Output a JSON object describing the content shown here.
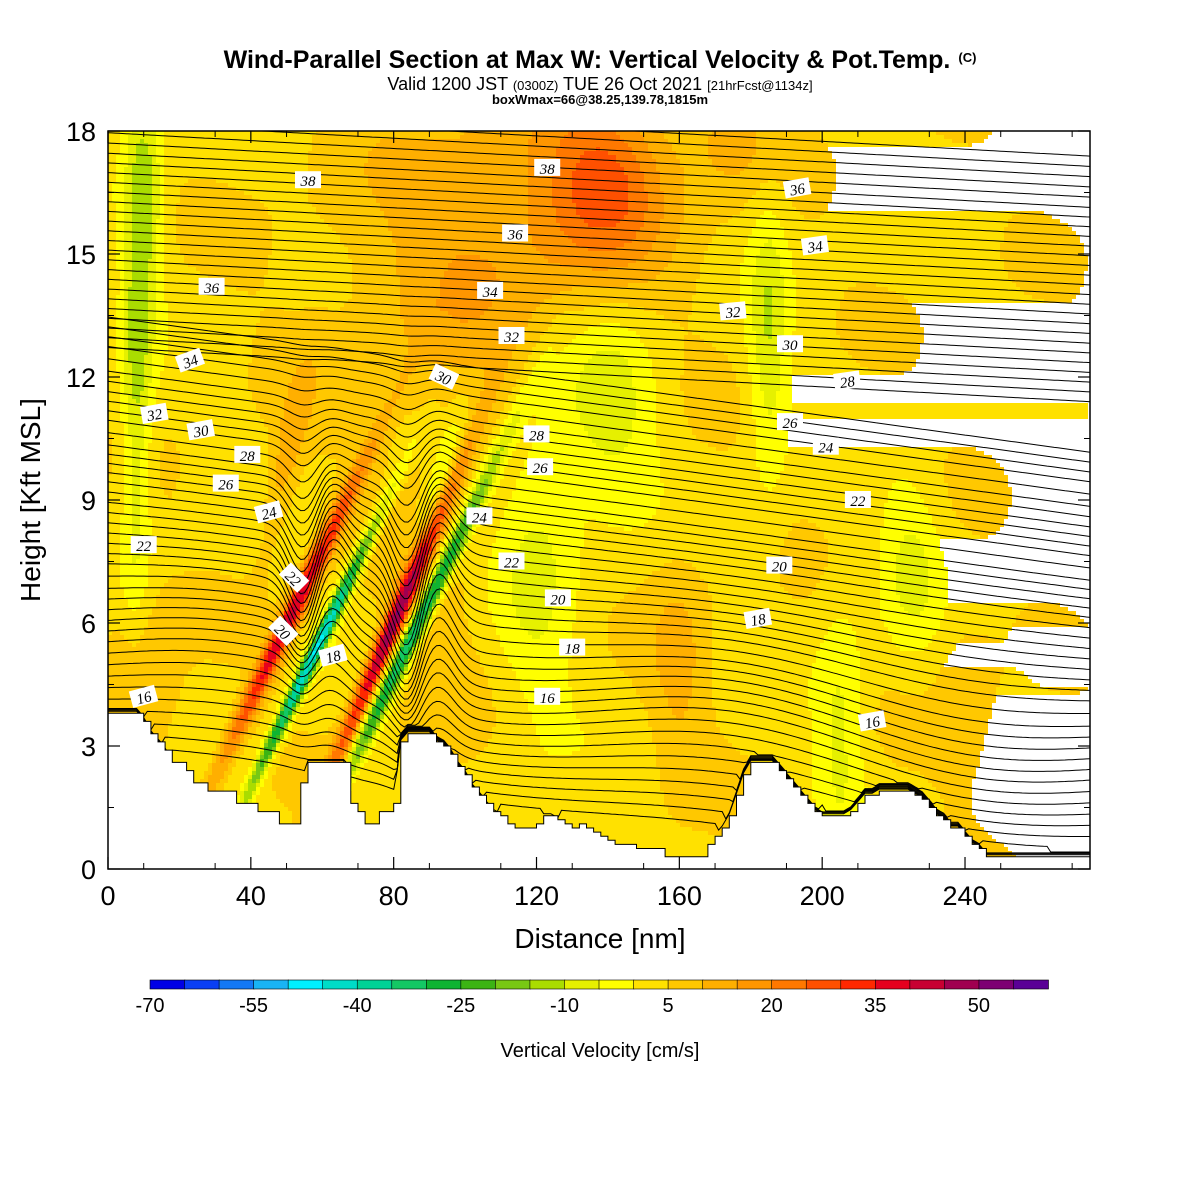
{
  "chart_data": {
    "type": "heatmap",
    "title": "Wind-Parallel Section at Max W: Vertical Velocity & Pot.Temp.",
    "title_mark": "(C)",
    "subtitle_parts": [
      "Valid 1200 JST ",
      "(0300Z)",
      " TUE 26 Oct 2021 ",
      "[21hrFcst@1134z]"
    ],
    "subtitle2": "boxWmax=66@38.25,139.78,1815m",
    "xlabel": "Distance [nm]",
    "ylabel": "Height [Kft MSL]",
    "xlim": [
      0,
      275
    ],
    "ylim": [
      0,
      18
    ],
    "x_ticks": [
      "0",
      "40",
      "80",
      "120",
      "160",
      "200",
      "240"
    ],
    "x_tick_values": [
      0,
      40,
      80,
      120,
      160,
      200,
      240
    ],
    "y_ticks": [
      "0",
      "3",
      "6",
      "9",
      "12",
      "15",
      "18"
    ],
    "y_tick_values": [
      0,
      3,
      6,
      9,
      12,
      15,
      18
    ],
    "colorbar": {
      "label": "Vertical Velocity [cm/s]",
      "tick_labels": [
        "-70",
        "-55",
        "-40",
        "-25",
        "-10",
        "5",
        "20",
        "35",
        "50"
      ],
      "tick_bins": [
        0,
        3,
        6,
        9,
        12,
        15,
        18,
        21,
        24
      ],
      "colors": [
        "#0000e6",
        "#0a3ff5",
        "#1478f5",
        "#19b4f5",
        "#00f0ff",
        "#00dcc8",
        "#00d296",
        "#14c864",
        "#0fb432",
        "#3cb414",
        "#78c814",
        "#aadc00",
        "#e6f000",
        "#ffff00",
        "#ffe100",
        "#ffc800",
        "#ffaf00",
        "#ff9600",
        "#ff7800",
        "#ff5000",
        "#ff2800",
        "#e6001e",
        "#c80032",
        "#a00050",
        "#7d0073",
        "#5a0096"
      ]
    },
    "terrain_profile": [
      [
        0,
        3.8
      ],
      [
        8,
        3.8
      ],
      [
        10,
        3.6
      ],
      [
        12,
        3.3
      ],
      [
        14,
        3.1
      ],
      [
        16,
        2.9
      ],
      [
        18,
        2.6
      ],
      [
        20,
        2.6
      ],
      [
        22,
        2.4
      ],
      [
        24,
        2.1
      ],
      [
        26,
        2.1
      ],
      [
        28,
        1.9
      ],
      [
        30,
        1.9
      ],
      [
        32,
        1.9
      ],
      [
        34,
        1.9
      ],
      [
        36,
        1.6
      ],
      [
        38,
        1.6
      ],
      [
        40,
        1.6
      ],
      [
        42,
        1.4
      ],
      [
        44,
        1.4
      ],
      [
        46,
        1.4
      ],
      [
        48,
        1.1
      ],
      [
        50,
        1.1
      ],
      [
        52,
        1.1
      ],
      [
        54,
        2.1
      ],
      [
        56,
        2.6
      ],
      [
        58,
        2.6
      ],
      [
        60,
        2.6
      ],
      [
        62,
        2.6
      ],
      [
        64,
        2.6
      ],
      [
        66,
        2.6
      ],
      [
        68,
        1.6
      ],
      [
        70,
        1.4
      ],
      [
        72,
        1.1
      ],
      [
        74,
        1.1
      ],
      [
        76,
        1.4
      ],
      [
        78,
        1.4
      ],
      [
        80,
        1.6
      ],
      [
        82,
        3.1
      ],
      [
        84,
        3.3
      ],
      [
        86,
        3.3
      ],
      [
        88,
        3.3
      ],
      [
        90,
        3.3
      ],
      [
        92,
        3.1
      ],
      [
        94,
        3.0
      ],
      [
        96,
        2.8
      ],
      [
        98,
        2.5
      ],
      [
        100,
        2.3
      ],
      [
        102,
        2.0
      ],
      [
        104,
        1.8
      ],
      [
        106,
        1.6
      ],
      [
        108,
        1.4
      ],
      [
        110,
        1.3
      ],
      [
        112,
        1.1
      ],
      [
        114,
        1.0
      ],
      [
        116,
        1.0
      ],
      [
        118,
        1.0
      ],
      [
        120,
        1.1
      ],
      [
        122,
        1.3
      ],
      [
        124,
        1.3
      ],
      [
        126,
        1.2
      ],
      [
        128,
        1.1
      ],
      [
        130,
        1.0
      ],
      [
        132,
        1.1
      ],
      [
        134,
        1.0
      ],
      [
        136,
        0.9
      ],
      [
        138,
        0.8
      ],
      [
        140,
        0.7
      ],
      [
        142,
        0.6
      ],
      [
        144,
        0.6
      ],
      [
        146,
        0.6
      ],
      [
        148,
        0.5
      ],
      [
        150,
        0.5
      ],
      [
        152,
        0.5
      ],
      [
        154,
        0.5
      ],
      [
        156,
        0.3
      ],
      [
        158,
        0.3
      ],
      [
        160,
        0.3
      ],
      [
        162,
        0.3
      ],
      [
        164,
        0.3
      ],
      [
        166,
        0.3
      ],
      [
        168,
        0.6
      ],
      [
        170,
        0.8
      ],
      [
        172,
        1.0
      ],
      [
        174,
        1.3
      ],
      [
        176,
        1.8
      ],
      [
        178,
        2.3
      ],
      [
        180,
        2.6
      ],
      [
        182,
        2.6
      ],
      [
        184,
        2.6
      ],
      [
        186,
        2.6
      ],
      [
        188,
        2.4
      ],
      [
        190,
        2.2
      ],
      [
        192,
        2.0
      ],
      [
        194,
        1.8
      ],
      [
        196,
        1.6
      ],
      [
        198,
        1.4
      ],
      [
        200,
        1.3
      ],
      [
        202,
        1.3
      ],
      [
        204,
        1.3
      ],
      [
        206,
        1.3
      ],
      [
        208,
        1.4
      ],
      [
        210,
        1.6
      ],
      [
        212,
        1.8
      ],
      [
        214,
        1.8
      ],
      [
        216,
        1.9
      ],
      [
        218,
        1.9
      ],
      [
        220,
        1.9
      ],
      [
        222,
        1.9
      ],
      [
        224,
        1.9
      ],
      [
        226,
        1.8
      ],
      [
        228,
        1.7
      ],
      [
        230,
        1.5
      ],
      [
        232,
        1.3
      ],
      [
        234,
        1.2
      ],
      [
        236,
        1.0
      ],
      [
        238,
        1.0
      ],
      [
        240,
        0.8
      ],
      [
        242,
        0.6
      ],
      [
        244,
        0.5
      ],
      [
        246,
        0.3
      ],
      [
        248,
        0.3
      ],
      [
        250,
        0.3
      ],
      [
        252,
        0.3
      ],
      [
        254,
        0.3
      ],
      [
        256,
        0.3
      ],
      [
        258,
        0.3
      ],
      [
        260,
        0.3
      ],
      [
        262,
        0.3
      ],
      [
        264,
        0.3
      ],
      [
        266,
        0.3
      ],
      [
        268,
        0.3
      ],
      [
        270,
        0.3
      ],
      [
        275,
        0.3
      ]
    ],
    "w_features": [
      {
        "x": 52,
        "y": 6.3,
        "sx": 2.2,
        "sy": 2.6,
        "tilt": 0.9,
        "amp": 7.5
      },
      {
        "x": 58,
        "y": 5.3,
        "sx": 1.6,
        "sy": 2.4,
        "tilt": 0.9,
        "amp": -9.5
      },
      {
        "x": 81,
        "y": 6.2,
        "sx": 2.1,
        "sy": 2.6,
        "tilt": 0.8,
        "amp": 9.0
      },
      {
        "x": 87,
        "y": 6.0,
        "sx": 2.0,
        "sy": 2.9,
        "tilt": 0.9,
        "amp": -8.0
      },
      {
        "x": 92,
        "y": 9.0,
        "sx": 3.0,
        "sy": 1.5,
        "tilt": 0.5,
        "amp": -2.5
      },
      {
        "x": 50,
        "y": 10.0,
        "sx": 3.0,
        "sy": 1.5,
        "tilt": 0.4,
        "amp": 2.0
      },
      {
        "x": 90,
        "y": 6.0,
        "sx": 8.0,
        "sy": 3.0,
        "tilt": 0.0,
        "amp": 1.0
      },
      {
        "x": 140,
        "y": 16.8,
        "sx": 12.0,
        "sy": 1.5,
        "tilt": 0.0,
        "amp": 3.5
      },
      {
        "x": 120,
        "y": 16.0,
        "sx": 25.0,
        "sy": 2.5,
        "tilt": 0.0,
        "amp": 1.5
      },
      {
        "x": 100,
        "y": 14.5,
        "sx": 30.0,
        "sy": 3.0,
        "tilt": 0.0,
        "amp": 1.2
      },
      {
        "x": 8,
        "y": 13.0,
        "sx": 3.0,
        "sy": 5.0,
        "tilt": 0.0,
        "amp": -3.0
      },
      {
        "x": 12,
        "y": 16.5,
        "sx": 3.0,
        "sy": 2.0,
        "tilt": 0.0,
        "amp": -2.0
      },
      {
        "x": 140,
        "y": 11.5,
        "sx": 10.0,
        "sy": 2.0,
        "tilt": 0.0,
        "amp": -2.5
      },
      {
        "x": 120,
        "y": 8.0,
        "sx": 8.0,
        "sy": 3.5,
        "tilt": 0.0,
        "amp": -1.8
      },
      {
        "x": 185,
        "y": 13.0,
        "sx": 4.0,
        "sy": 2.5,
        "tilt": 0.0,
        "amp": -2.5
      },
      {
        "x": 205,
        "y": 3.5,
        "sx": 5.0,
        "sy": 2.0,
        "tilt": 0.0,
        "amp": -2.0
      },
      {
        "x": 225,
        "y": 7.5,
        "sx": 6.0,
        "sy": 1.5,
        "tilt": 0.0,
        "amp": -1.8
      },
      {
        "x": 160,
        "y": 5.0,
        "sx": 6.0,
        "sy": 2.0,
        "tilt": 0.0,
        "amp": 1.5
      },
      {
        "x": 10,
        "y": 4.5,
        "sx": 7.0,
        "sy": 1.5,
        "tilt": 0.0,
        "amp": 1.8
      },
      {
        "x": 240,
        "y": 4.0,
        "sx": 6.0,
        "sy": 1.5,
        "tilt": 0.0,
        "amp": 1.2
      },
      {
        "x": 175,
        "y": 17.8,
        "sx": 10.0,
        "sy": 1.0,
        "tilt": 0.0,
        "amp": 1.5
      }
    ],
    "theta_contours": [
      {
        "level": 16,
        "ref_y": 3.9,
        "ref_x": 0
      },
      {
        "level": 18,
        "ref_y": 5.2,
        "ref_x": 60
      },
      {
        "level": 20,
        "ref_y": 5.8,
        "ref_x": 49
      },
      {
        "level": 22,
        "ref_y": 7.8,
        "ref_x": 10
      },
      {
        "level": 24,
        "ref_y": 8.7,
        "ref_x": 45
      },
      {
        "level": 26,
        "ref_y": 9.3,
        "ref_x": 33
      },
      {
        "level": 28,
        "ref_y": 10.0,
        "ref_x": 39
      },
      {
        "level": 30,
        "ref_y": 10.5,
        "ref_x": 26
      },
      {
        "level": 32,
        "ref_y": 11.1,
        "ref_x": 13
      },
      {
        "level": 34,
        "ref_y": 12.3,
        "ref_x": 23
      },
      {
        "level": 36,
        "ref_y": 14.2,
        "ref_x": 30
      },
      {
        "level": 38,
        "ref_y": 16.8,
        "ref_x": 56
      }
    ],
    "contour_spacing_kft": 0.245,
    "contour_labels": [
      {
        "text": "38",
        "x": 56,
        "y": 16.8,
        "rot": 0
      },
      {
        "text": "38",
        "x": 123,
        "y": 17.1,
        "rot": 0
      },
      {
        "text": "36",
        "x": 193,
        "y": 16.6,
        "rot": -10
      },
      {
        "text": "36",
        "x": 114,
        "y": 15.5,
        "rot": 0
      },
      {
        "text": "34",
        "x": 198,
        "y": 15.2,
        "rot": -8
      },
      {
        "text": "36",
        "x": 29,
        "y": 14.2,
        "rot": 0
      },
      {
        "text": "34",
        "x": 107,
        "y": 14.1,
        "rot": 0
      },
      {
        "text": "32",
        "x": 175,
        "y": 13.6,
        "rot": -5
      },
      {
        "text": "32",
        "x": 113,
        "y": 13.0,
        "rot": 0
      },
      {
        "text": "30",
        "x": 191,
        "y": 12.8,
        "rot": 0
      },
      {
        "text": "34",
        "x": 23,
        "y": 12.4,
        "rot": -20
      },
      {
        "text": "30",
        "x": 94,
        "y": 12.0,
        "rot": 25
      },
      {
        "text": "28",
        "x": 207,
        "y": 11.9,
        "rot": -8
      },
      {
        "text": "32",
        "x": 13,
        "y": 11.1,
        "rot": -10
      },
      {
        "text": "26",
        "x": 191,
        "y": 10.9,
        "rot": 0
      },
      {
        "text": "30",
        "x": 26,
        "y": 10.7,
        "rot": -10
      },
      {
        "text": "28",
        "x": 120,
        "y": 10.6,
        "rot": 0
      },
      {
        "text": "24",
        "x": 201,
        "y": 10.3,
        "rot": 0
      },
      {
        "text": "28",
        "x": 39,
        "y": 10.1,
        "rot": 0
      },
      {
        "text": "26",
        "x": 121,
        "y": 9.8,
        "rot": 0
      },
      {
        "text": "26",
        "x": 33,
        "y": 9.4,
        "rot": 0
      },
      {
        "text": "22",
        "x": 210,
        "y": 9.0,
        "rot": 0
      },
      {
        "text": "24",
        "x": 45,
        "y": 8.7,
        "rot": -15
      },
      {
        "text": "24",
        "x": 104,
        "y": 8.6,
        "rot": 0
      },
      {
        "text": "22",
        "x": 10,
        "y": 7.9,
        "rot": 0
      },
      {
        "text": "22",
        "x": 113,
        "y": 7.5,
        "rot": 0
      },
      {
        "text": "20",
        "x": 188,
        "y": 7.4,
        "rot": 0
      },
      {
        "text": "22",
        "x": 52,
        "y": 7.1,
        "rot": 45
      },
      {
        "text": "20",
        "x": 126,
        "y": 6.6,
        "rot": 0
      },
      {
        "text": "18",
        "x": 182,
        "y": 6.1,
        "rot": -10
      },
      {
        "text": "20",
        "x": 49,
        "y": 5.8,
        "rot": 45
      },
      {
        "text": "18",
        "x": 130,
        "y": 5.4,
        "rot": 0
      },
      {
        "text": "18",
        "x": 63,
        "y": 5.2,
        "rot": -15
      },
      {
        "text": "16",
        "x": 10,
        "y": 4.2,
        "rot": -15
      },
      {
        "text": "16",
        "x": 123,
        "y": 4.2,
        "rot": 0
      },
      {
        "text": "16",
        "x": 214,
        "y": 3.6,
        "rot": -10
      }
    ]
  }
}
